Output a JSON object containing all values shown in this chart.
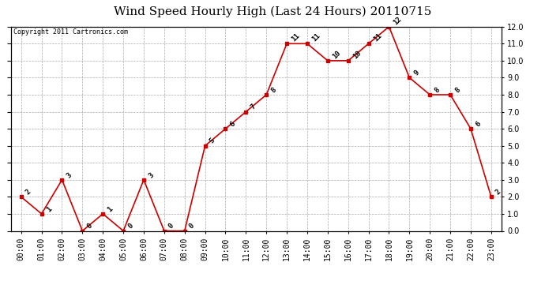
{
  "title": "Wind Speed Hourly High (Last 24 Hours) 20110715",
  "copyright": "Copyright 2011 Cartronics.com",
  "hours": [
    "00:00",
    "01:00",
    "02:00",
    "03:00",
    "04:00",
    "05:00",
    "06:00",
    "07:00",
    "08:00",
    "09:00",
    "10:00",
    "11:00",
    "12:00",
    "13:00",
    "14:00",
    "15:00",
    "16:00",
    "17:00",
    "18:00",
    "19:00",
    "20:00",
    "21:00",
    "22:00",
    "23:00"
  ],
  "values": [
    2,
    1,
    3,
    0,
    1,
    0,
    3,
    0,
    0,
    5,
    6,
    7,
    8,
    11,
    11,
    10,
    10,
    11,
    12,
    9,
    8,
    8,
    6,
    2
  ],
  "line_color": "#cc0000",
  "marker_color": "#cc0000",
  "bg_color": "#ffffff",
  "grid_color": "#aaaaaa",
  "ylim": [
    0.0,
    12.0
  ],
  "yticks": [
    0.0,
    1.0,
    2.0,
    3.0,
    4.0,
    5.0,
    6.0,
    7.0,
    8.0,
    9.0,
    10.0,
    11.0,
    12.0
  ],
  "title_fontsize": 11,
  "label_fontsize": 7,
  "annotation_fontsize": 6.5
}
